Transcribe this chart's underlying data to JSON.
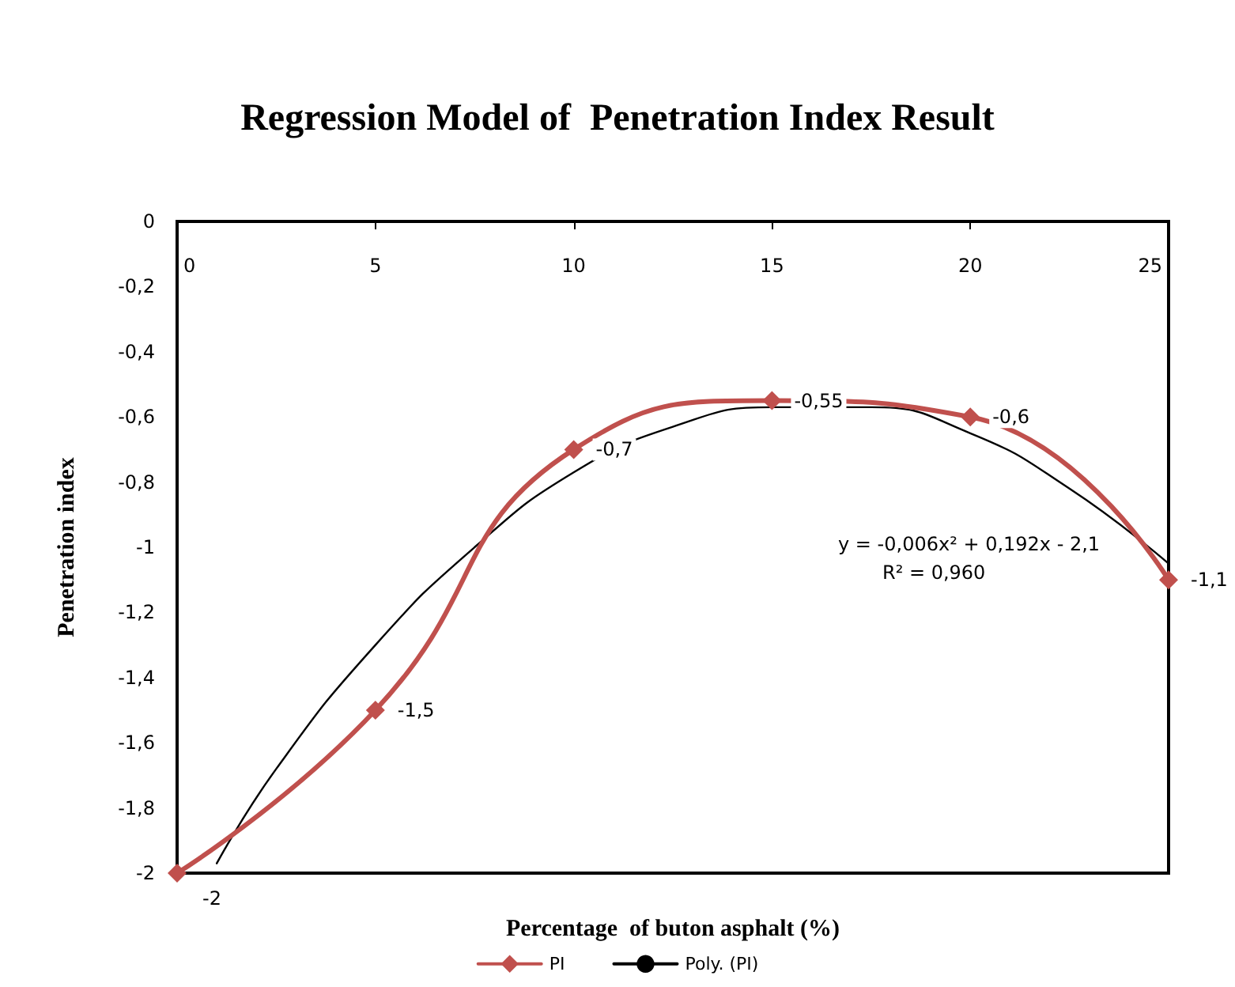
{
  "chart_data": {
    "type": "line",
    "title": "Regression Model of  Penetration Index Result",
    "xlabel": "Percentage  of buton asphalt (%)",
    "ylabel": "Penetration index",
    "annotations": [
      "y = -0,006x² + 0,192x - 2,1",
      "R² = 0,960"
    ],
    "series": [
      {
        "name": "PI",
        "color": "#c0504d",
        "x": [
          0,
          5,
          10,
          15,
          20,
          25
        ],
        "values": [
          -2,
          -1.5,
          -0.7,
          -0.55,
          -0.6,
          -1.1
        ],
        "value_labels": [
          "-2",
          "-1,5",
          "-0,7",
          "-0,55",
          "-0,6",
          "-1,1"
        ],
        "marker": "diamond"
      },
      {
        "name": "Poly. (PI)",
        "color": "#000000",
        "x": [
          1,
          2.5,
          5,
          7.5,
          10,
          12.5,
          15,
          17.5,
          20,
          22.5,
          25
        ],
        "values": [
          -1.97,
          -1.68,
          -1.3,
          -1.0,
          -0.77,
          -0.63,
          -0.57,
          -0.57,
          -0.65,
          -0.82,
          -1.05
        ],
        "marker": "none"
      }
    ],
    "xlim": [
      0,
      25
    ],
    "xticks": [
      0,
      5,
      10,
      15,
      20,
      25
    ],
    "ylim": [
      -2,
      0
    ],
    "yticks": [
      {
        "value": -2,
        "label": "-2"
      },
      {
        "value": -1.8,
        "label": "-1,8"
      },
      {
        "value": -1.6,
        "label": "-1,6"
      },
      {
        "value": -1.4,
        "label": "-1,4"
      },
      {
        "value": -1.2,
        "label": "-1,2"
      },
      {
        "value": -1,
        "label": "-1"
      },
      {
        "value": -0.8,
        "label": "-0,8"
      },
      {
        "value": -0.6,
        "label": "-0,6"
      },
      {
        "value": -0.4,
        "label": "-0,4"
      },
      {
        "value": -0.2,
        "label": "-0,2"
      },
      {
        "value": 0,
        "label": "0"
      }
    ],
    "grid": false,
    "legend": "bottom",
    "line_style": "solid"
  }
}
